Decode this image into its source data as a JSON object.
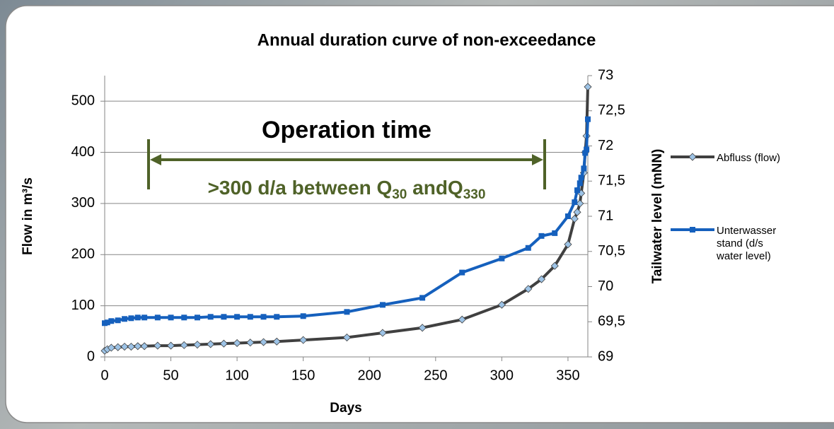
{
  "chart_data": {
    "type": "line",
    "title": "Annual duration curve of non-exceedance",
    "x_label": "Days",
    "y_label": "Flow in m³/s",
    "y2_label": "Tailwater level (mNN)",
    "x": [
      0,
      2,
      5,
      10,
      15,
      20,
      25,
      30,
      40,
      50,
      60,
      70,
      80,
      90,
      100,
      110,
      120,
      130,
      150,
      183,
      210,
      240,
      270,
      300,
      320,
      330,
      340,
      350,
      355,
      357,
      359,
      360,
      362,
      363,
      364,
      365
    ],
    "series": [
      {
        "name": "Abfluss (flow)",
        "color": "#404040",
        "marker_color": "#9dc3e6",
        "values": [
          12,
          15,
          18,
          19,
          20,
          20,
          21,
          21,
          22,
          22,
          23,
          24,
          25,
          26,
          27,
          28,
          29,
          30,
          33,
          38,
          47,
          57,
          73,
          102,
          133,
          152,
          178,
          220,
          270,
          283,
          300,
          320,
          360,
          400,
          432,
          528
        ]
      },
      {
        "name": "Unterwasser stand (d/s water level)",
        "color": "#1560bd",
        "axis": "y2",
        "values": [
          69.48,
          69.49,
          69.51,
          69.52,
          69.54,
          69.55,
          69.56,
          69.56,
          69.56,
          69.56,
          69.56,
          69.56,
          69.57,
          69.57,
          69.57,
          69.57,
          69.57,
          69.57,
          69.58,
          69.64,
          69.74,
          69.84,
          70.2,
          70.4,
          70.55,
          70.72,
          70.76,
          71.0,
          71.2,
          71.37,
          71.47,
          71.55,
          71.68,
          71.9,
          71.95,
          72.38
        ]
      }
    ],
    "xlim": [
      0,
      365
    ],
    "xticks": [
      0,
      50,
      100,
      150,
      200,
      250,
      300,
      350
    ],
    "ylim": [
      0,
      550
    ],
    "yticks": [
      0,
      100,
      200,
      300,
      400,
      500
    ],
    "y2lim": [
      69,
      73
    ],
    "y2ticks": [
      69,
      {
        "value": 69.5,
        "label": "69,5"
      },
      70,
      {
        "value": 70.5,
        "label": "70,5"
      },
      71,
      {
        "value": 71.5,
        "label": "71,5"
      },
      72,
      {
        "value": 72.5,
        "label": "72,5"
      },
      73
    ],
    "grid": true,
    "legend": "right",
    "annotation": {
      "title": "Operation time",
      "text": ">300 d/a between Q",
      "sub1": "30",
      "text2": " andQ",
      "sub2": "330",
      "color": "#4f6228"
    }
  }
}
